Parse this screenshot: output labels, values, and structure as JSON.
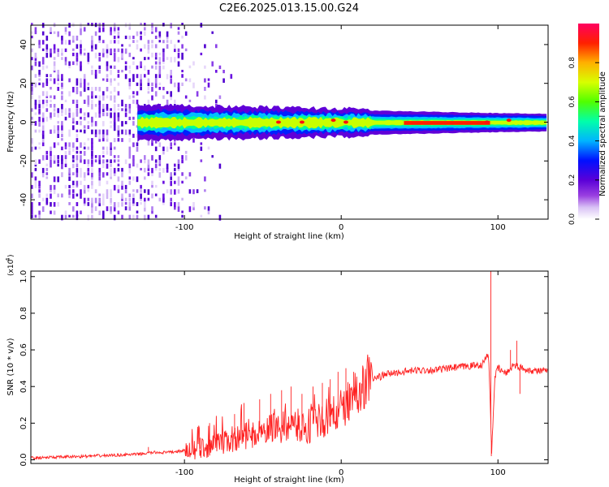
{
  "title": "C2E6.2025.013.15.00.G24",
  "chart_data": [
    {
      "type": "heatmap",
      "xlabel": "Height of straight line (km)",
      "ylabel": "Frequency (Hz)",
      "xlim": [
        -198,
        132
      ],
      "ylim": [
        -50,
        50
      ],
      "x_ticks": [
        -100,
        0,
        100
      ],
      "y_ticks": [
        -40,
        -20,
        0,
        20,
        40
      ],
      "colorbar": {
        "label": "Normalized spectral amplitude",
        "range": [
          0,
          1
        ],
        "ticks": [
          "0.0",
          "0.2",
          "0.4",
          "0.6",
          "0.8"
        ],
        "colors": [
          "#ffffff",
          "#6a00c8",
          "#0000ff",
          "#00c8ff",
          "#00ff96",
          "#64ff00",
          "#ffff00",
          "#ff9600",
          "#ff0000",
          "#ff0064"
        ]
      },
      "description_values": {
        "noise_region_x": [
          -198,
          -100
        ],
        "signal_band_center_hz": 0,
        "signal_band_halfwidth_hz": [
          8,
          2
        ],
        "signal_start_x": -130
      }
    },
    {
      "type": "line",
      "xlabel": "Height of straight line (km)",
      "ylabel": "SNR (10 * v/v)",
      "y_scale_label": "(x10",
      "y_scale_exp": "4",
      "xlim": [
        -198,
        132
      ],
      "ylim": [
        -0.02,
        1.03
      ],
      "x_ticks": [
        -100,
        0,
        100
      ],
      "y_ticks": [
        "0.0",
        "0.2",
        "0.4",
        "0.6",
        "0.8",
        "1.0"
      ],
      "series": [
        {
          "color": "#ff2020",
          "x": [
            -198,
            -160,
            -130,
            -120,
            -110,
            -100,
            -90,
            -80,
            -70,
            -60,
            -50,
            -40,
            -30,
            -20,
            -10,
            0,
            10,
            20,
            30,
            40,
            50,
            60,
            70,
            80,
            90,
            94,
            96,
            98,
            100,
            105,
            110,
            115,
            120,
            132
          ],
          "y": [
            0.01,
            0.02,
            0.03,
            0.04,
            0.04,
            0.05,
            0.06,
            0.08,
            0.11,
            0.13,
            0.15,
            0.17,
            0.18,
            0.19,
            0.22,
            0.27,
            0.37,
            0.44,
            0.47,
            0.48,
            0.49,
            0.49,
            0.5,
            0.51,
            0.52,
            0.58,
            0.05,
            0.45,
            0.5,
            0.47,
            0.52,
            0.5,
            0.49,
            0.48
          ],
          "spikes": [
            [
              -123,
              0.07
            ],
            [
              -90,
              0.12
            ],
            [
              -84,
              0.2
            ],
            [
              -68,
              0.25
            ],
            [
              -62,
              0.31
            ],
            [
              -52,
              0.33
            ],
            [
              -45,
              0.36
            ],
            [
              -38,
              0.38
            ],
            [
              -32,
              0.4
            ],
            [
              -25,
              0.36
            ],
            [
              -18,
              0.4
            ],
            [
              -12,
              0.42
            ],
            [
              -7,
              0.44
            ],
            [
              -2,
              0.48
            ],
            [
              3,
              0.5
            ],
            [
              8,
              0.48
            ],
            [
              95.5,
              1.03
            ],
            [
              95.8,
              0.02
            ],
            [
              108,
              0.6
            ],
            [
              112,
              0.65
            ],
            [
              114,
              0.36
            ]
          ]
        }
      ]
    }
  ]
}
